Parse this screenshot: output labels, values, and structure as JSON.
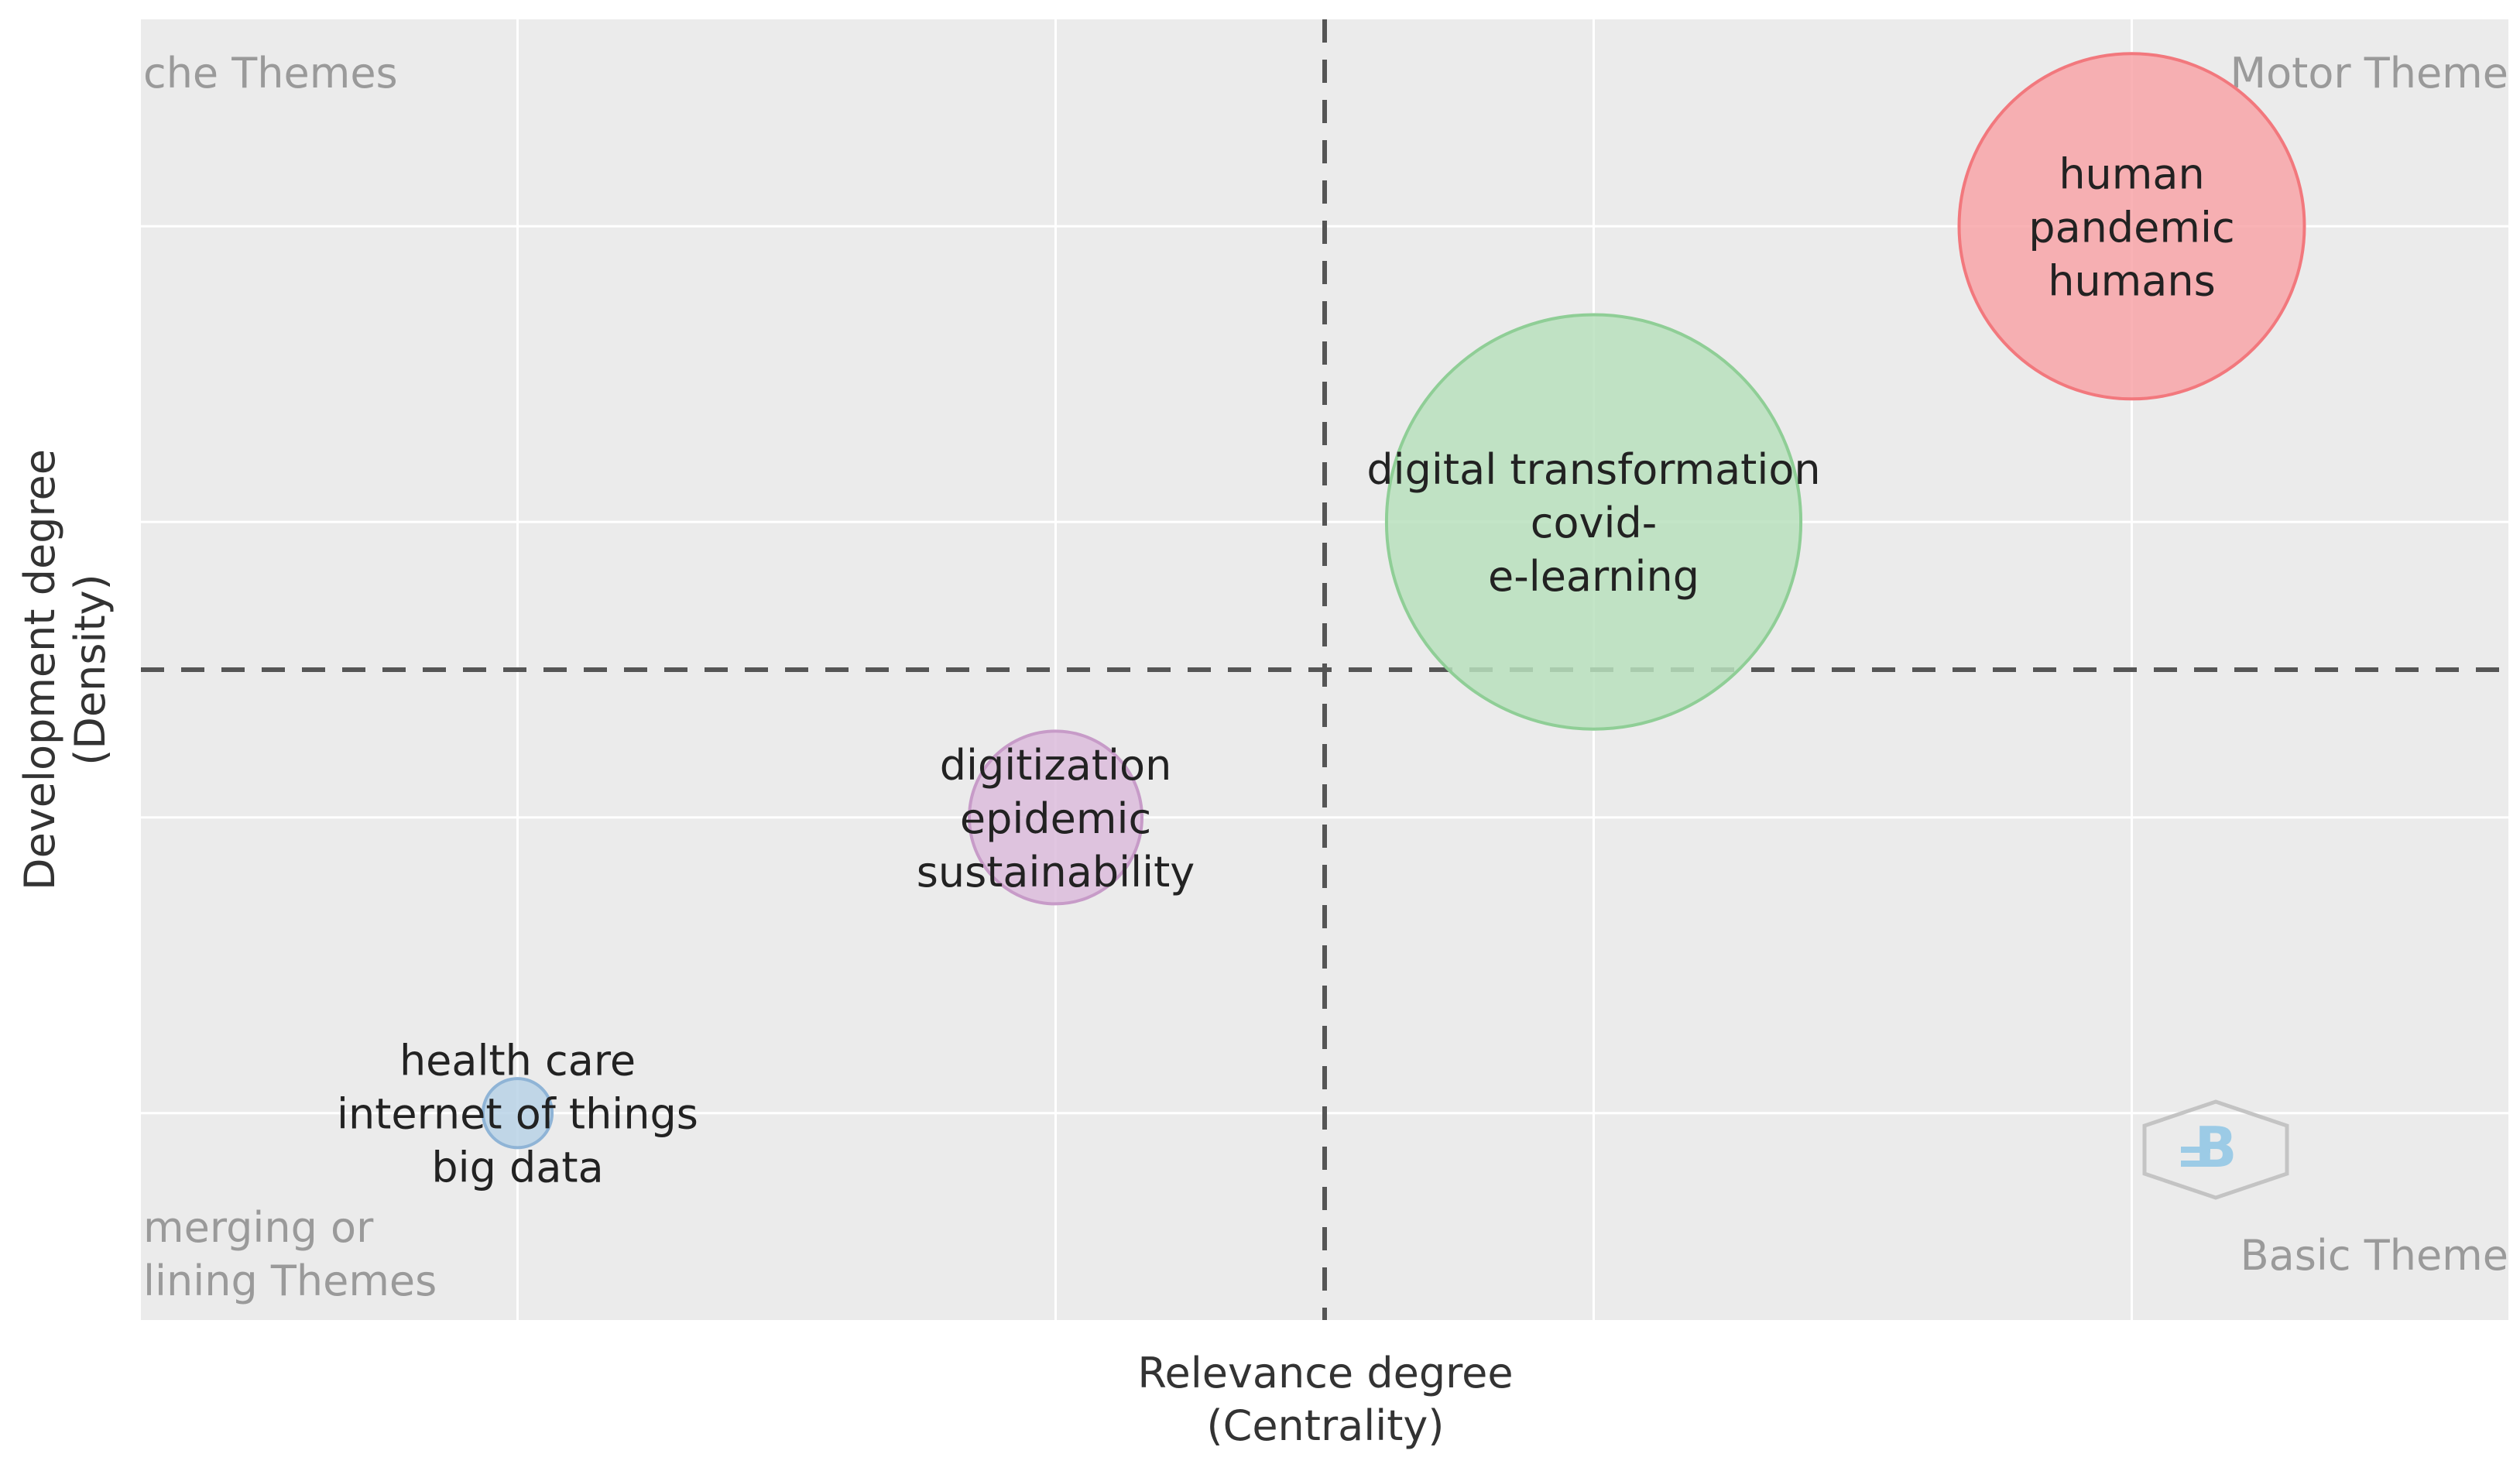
{
  "chart_data": {
    "type": "scatter",
    "title": "",
    "xlabel": [
      "Relevance degree",
      "(Centrality)"
    ],
    "ylabel": [
      "Development degree",
      "(Density)"
    ],
    "xlim": [
      0,
      4.4
    ],
    "ylim": [
      0,
      4.4
    ],
    "grid": true,
    "gridlines_x": [
      0.7,
      1.7,
      2.7,
      3.7
    ],
    "gridlines_y": [
      0.7,
      1.7,
      2.7,
      3.7
    ],
    "divider_x": 2.2,
    "divider_y": 2.2,
    "quadrant_labels": {
      "top_left": "che Themes",
      "top_right": "Motor Theme",
      "bottom_left": [
        "merging or",
        "lining Themes"
      ],
      "bottom_right": "Basic Theme"
    },
    "points": [
      {
        "x": 3.7,
        "y": 3.7,
        "size": 1.0,
        "color": "#f8a5a8",
        "stroke": "#f2787d",
        "labels": [
          "human",
          "pandemic",
          "humans"
        ]
      },
      {
        "x": 2.7,
        "y": 2.7,
        "size": 1.2,
        "color": "#b9e1bd",
        "stroke": "#8fce96",
        "labels": [
          "digital transformation",
          "covid-",
          "e-learning"
        ]
      },
      {
        "x": 1.7,
        "y": 1.7,
        "size": 0.5,
        "color": "#dcbcdc",
        "stroke": "#c79bc8",
        "labels": [
          "digitization",
          "epidemic",
          "sustainability"
        ]
      },
      {
        "x": 0.7,
        "y": 0.7,
        "size": 0.2,
        "color": "#b9d2e6",
        "stroke": "#8fb4d6",
        "labels": [
          "health care",
          "internet of things",
          "big data"
        ]
      }
    ],
    "watermark": "logo-hexagon-icon"
  }
}
